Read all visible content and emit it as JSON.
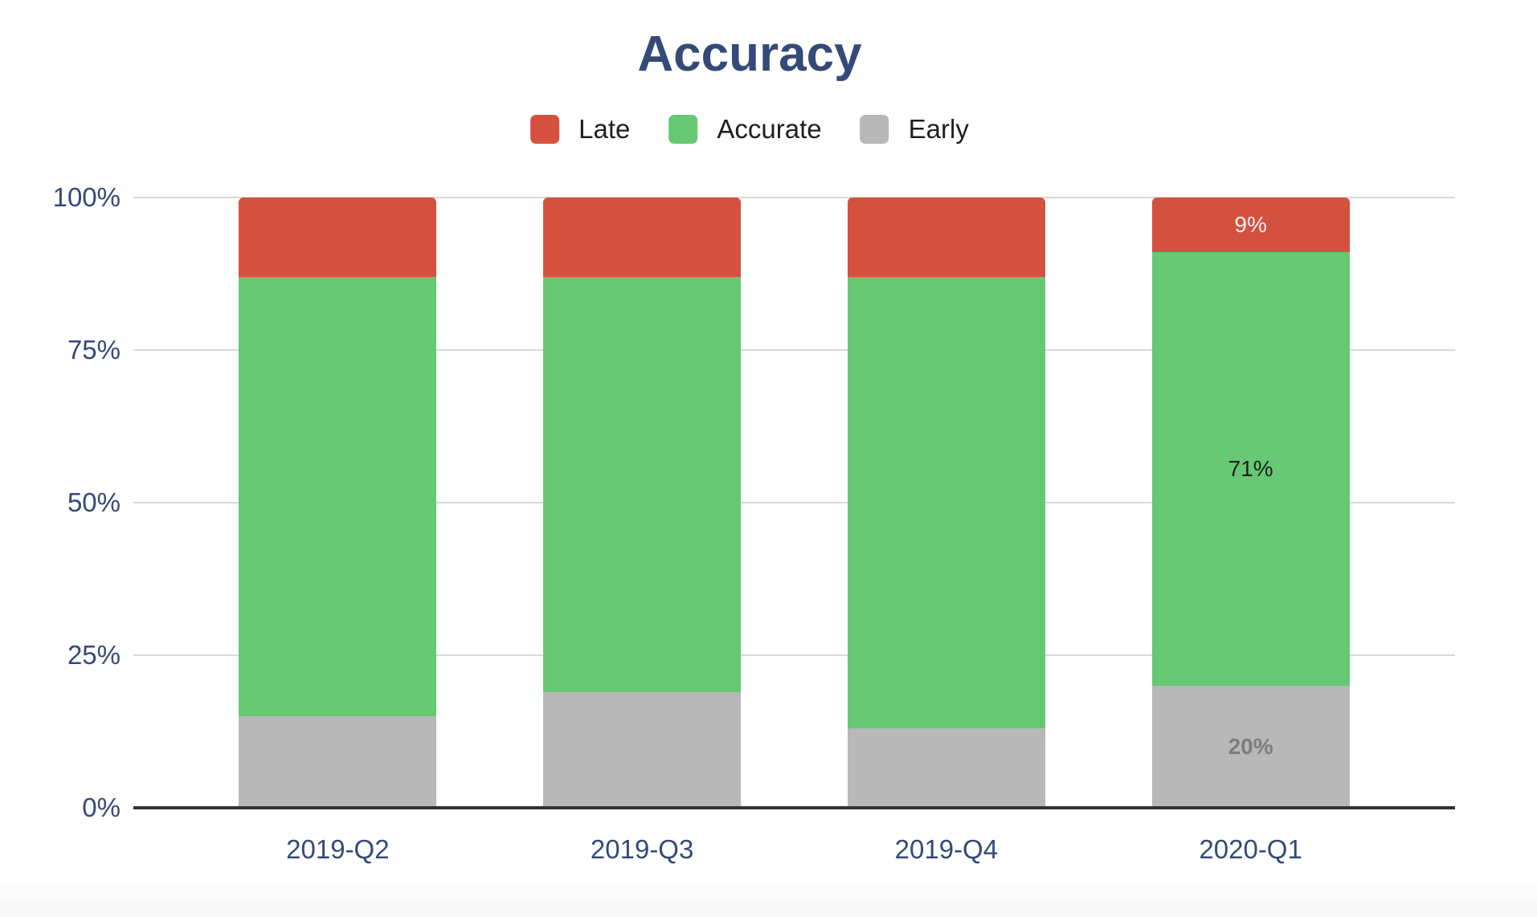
{
  "chart_data": {
    "type": "bar",
    "variant": "stacked-100-percent",
    "title": "Accuracy",
    "categories": [
      "2019-Q2",
      "2019-Q3",
      "2019-Q4",
      "2020-Q1"
    ],
    "series": [
      {
        "name": "Late",
        "color": "#d5513f",
        "values": [
          13,
          13,
          13,
          9
        ]
      },
      {
        "name": "Accurate",
        "color": "#66c873",
        "values": [
          72,
          68,
          74,
          71
        ]
      },
      {
        "name": "Early",
        "color": "#b8b8b8",
        "values": [
          15,
          19,
          13,
          20
        ]
      }
    ],
    "yticks": [
      {
        "label": "100%",
        "value": 100
      },
      {
        "label": "75%",
        "value": 75
      },
      {
        "label": "50%",
        "value": 50
      },
      {
        "label": "25%",
        "value": 25
      },
      {
        "label": "0%",
        "value": 0
      }
    ],
    "ylim": [
      0,
      100
    ],
    "grid": true,
    "legend_position": "top",
    "data_labels": {
      "category_index": 3,
      "labels": [
        {
          "series": "Late",
          "text": "9%",
          "color": "#fdf1ef",
          "bold": false
        },
        {
          "series": "Accurate",
          "text": "71%",
          "color": "#1f1f1f",
          "bold": false
        },
        {
          "series": "Early",
          "text": "20%",
          "color": "#7d7d7d",
          "bold": true
        }
      ]
    },
    "colors": {
      "title": "#344a78",
      "tick_labels": "#344a78",
      "gridline": "#d9d9d9",
      "axis_line": "#333333",
      "legend_text": "#1f1f1f",
      "background": "#ffffff",
      "bottom_strip": "#f8f8f8"
    }
  }
}
